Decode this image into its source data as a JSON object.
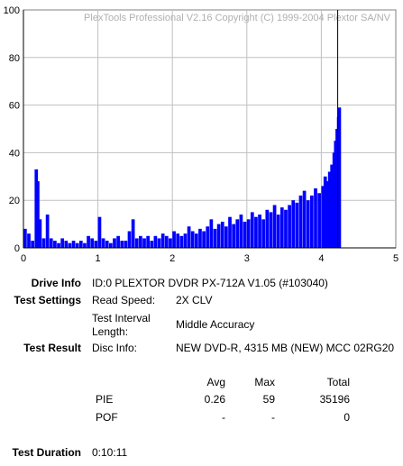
{
  "chart_data": {
    "type": "bar",
    "watermark": "PlexTools Professional V2.16 Copyright (C) 1999-2004 Plextor SA/NV",
    "xlim": [
      0,
      5
    ],
    "ylim": [
      0,
      100
    ],
    "x_ticks": [
      "0",
      "1",
      "2",
      "3",
      "4",
      "5"
    ],
    "y_ticks": [
      "0",
      "20",
      "40",
      "60",
      "80",
      "100"
    ],
    "grid": true,
    "series": [
      {
        "color": "#0000ff",
        "x": [
          0.0,
          0.05,
          0.1,
          0.15,
          0.17,
          0.2,
          0.25,
          0.3,
          0.35,
          0.4,
          0.45,
          0.5,
          0.55,
          0.6,
          0.65,
          0.7,
          0.75,
          0.8,
          0.85,
          0.9,
          0.95,
          1.0,
          1.05,
          1.1,
          1.15,
          1.2,
          1.25,
          1.3,
          1.35,
          1.4,
          1.45,
          1.5,
          1.55,
          1.6,
          1.65,
          1.7,
          1.75,
          1.8,
          1.85,
          1.9,
          1.95,
          2.0,
          2.05,
          2.1,
          2.15,
          2.2,
          2.25,
          2.3,
          2.35,
          2.4,
          2.45,
          2.5,
          2.55,
          2.6,
          2.65,
          2.7,
          2.75,
          2.8,
          2.85,
          2.9,
          2.95,
          3.0,
          3.05,
          3.1,
          3.15,
          3.2,
          3.25,
          3.3,
          3.35,
          3.4,
          3.45,
          3.5,
          3.55,
          3.6,
          3.65,
          3.7,
          3.75,
          3.8,
          3.85,
          3.9,
          3.95,
          4.0,
          4.03,
          4.06,
          4.09,
          4.12,
          4.15,
          4.17,
          4.19,
          4.21,
          4.22
        ],
        "values": [
          8,
          6,
          3,
          33,
          28,
          12,
          4,
          14,
          4,
          3,
          2,
          4,
          3,
          2,
          3,
          2,
          3,
          2,
          5,
          4,
          3,
          13,
          4,
          3,
          2,
          4,
          5,
          3,
          3,
          7,
          12,
          4,
          5,
          4,
          5,
          3,
          5,
          4,
          6,
          5,
          4,
          7,
          6,
          5,
          6,
          9,
          7,
          6,
          8,
          7,
          9,
          12,
          8,
          10,
          11,
          9,
          13,
          10,
          12,
          14,
          11,
          12,
          15,
          13,
          14,
          12,
          16,
          15,
          18,
          14,
          17,
          16,
          18,
          20,
          19,
          22,
          24,
          20,
          22,
          25,
          23,
          26,
          30,
          28,
          32,
          35,
          40,
          45,
          50,
          55,
          59
        ]
      }
    ],
    "marker_x": 4.22
  },
  "info": {
    "drive_info_label": "Drive Info",
    "drive_info_value": "ID:0 PLEXTOR DVDR PX-712A V1.05 (#103040)",
    "test_settings_label": "Test Settings",
    "read_speed_label": "Read Speed:",
    "read_speed_value": "2X CLV",
    "test_interval_label_1": "Test Interval",
    "test_interval_label_2": "Length:",
    "test_interval_value": "Middle Accuracy",
    "test_result_label": "Test Result",
    "disc_info_label": "Disc Info:",
    "disc_info_value": "NEW DVD-R, 4315 MB (NEW) MCC 02RG20",
    "test_duration_label": "Test Duration",
    "test_duration_value": "0:10:11"
  },
  "stats": {
    "headers": {
      "avg": "Avg",
      "max": "Max",
      "total": "Total"
    },
    "rows": [
      {
        "name": "PIE",
        "avg": "0.26",
        "max": "59",
        "total": "35196"
      },
      {
        "name": "POF",
        "avg": "-",
        "max": "-",
        "total": "0"
      }
    ]
  }
}
